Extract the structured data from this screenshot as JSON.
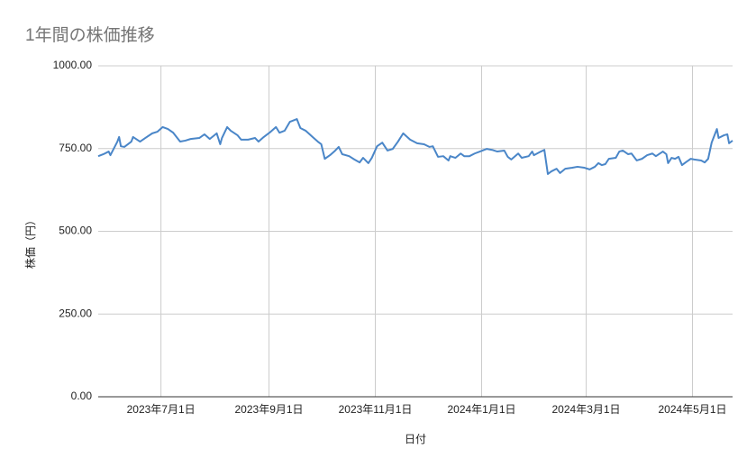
{
  "chart_data": {
    "type": "line",
    "title": "1年間の株価推移",
    "x_label": "日付",
    "y_label": "株価（円）",
    "grid": true,
    "xlim": [
      "2023-05-26",
      "2024-05-24"
    ],
    "xticks": [
      {
        "value": "2023-07-01",
        "label": "2023年7月1日"
      },
      {
        "value": "2023-09-01",
        "label": "2023年9月1日"
      },
      {
        "value": "2023-11-01",
        "label": "2023年11月1日"
      },
      {
        "value": "2024-01-01",
        "label": "2024年1月1日"
      },
      {
        "value": "2024-03-01",
        "label": "2024年3月1日"
      },
      {
        "value": "2024-05-01",
        "label": "2024年5月1日"
      }
    ],
    "ylim": [
      0,
      1000
    ],
    "yticks": [
      {
        "value": 0,
        "label": "0.00"
      },
      {
        "value": 250,
        "label": "250.00"
      },
      {
        "value": 500,
        "label": "500.00"
      },
      {
        "value": 750,
        "label": "750.00"
      },
      {
        "value": 1000,
        "label": "1000.00"
      }
    ],
    "x": [
      "2023-05-26",
      "2023-05-29",
      "2023-06-01",
      "2023-06-02",
      "2023-06-06",
      "2023-06-07",
      "2023-06-08",
      "2023-06-10",
      "2023-06-14",
      "2023-06-15",
      "2023-06-19",
      "2023-06-22",
      "2023-06-26",
      "2023-06-29",
      "2023-07-02",
      "2023-07-05",
      "2023-07-08",
      "2023-07-12",
      "2023-07-15",
      "2023-07-18",
      "2023-07-23",
      "2023-07-26",
      "2023-07-29",
      "2023-08-02",
      "2023-08-04",
      "2023-08-05",
      "2023-08-08",
      "2023-08-10",
      "2023-08-14",
      "2023-08-16",
      "2023-08-20",
      "2023-08-24",
      "2023-08-26",
      "2023-08-29",
      "2023-09-02",
      "2023-09-05",
      "2023-09-07",
      "2023-09-10",
      "2023-09-13",
      "2023-09-17",
      "2023-09-19",
      "2023-09-22",
      "2023-09-26",
      "2023-09-29",
      "2023-10-01",
      "2023-10-03",
      "2023-10-06",
      "2023-10-09",
      "2023-10-11",
      "2023-10-13",
      "2023-10-17",
      "2023-10-20",
      "2023-10-23",
      "2023-10-25",
      "2023-10-28",
      "2023-10-30",
      "2023-11-02",
      "2023-11-05",
      "2023-11-08",
      "2023-11-11",
      "2023-11-14",
      "2023-11-17",
      "2023-11-21",
      "2023-11-25",
      "2023-11-29",
      "2023-12-02",
      "2023-12-04",
      "2023-12-07",
      "2023-12-10",
      "2023-12-13",
      "2023-12-14",
      "2023-12-17",
      "2023-12-20",
      "2023-12-22",
      "2023-12-25",
      "2023-12-28",
      "2023-12-31",
      "2024-01-04",
      "2024-01-07",
      "2024-01-10",
      "2024-01-14",
      "2024-01-16",
      "2024-01-18",
      "2024-01-22",
      "2024-01-24",
      "2024-01-28",
      "2024-01-30",
      "2024-01-31",
      "2024-02-04",
      "2024-02-06",
      "2024-02-08",
      "2024-02-10",
      "2024-02-13",
      "2024-02-15",
      "2024-02-18",
      "2024-02-22",
      "2024-02-25",
      "2024-02-29",
      "2024-03-03",
      "2024-03-06",
      "2024-03-08",
      "2024-03-10",
      "2024-03-12",
      "2024-03-14",
      "2024-03-18",
      "2024-03-20",
      "2024-03-22",
      "2024-03-25",
      "2024-03-27",
      "2024-03-30",
      "2024-04-02",
      "2024-04-05",
      "2024-04-08",
      "2024-04-10",
      "2024-04-14",
      "2024-04-16",
      "2024-04-17",
      "2024-04-19",
      "2024-04-21",
      "2024-04-23",
      "2024-04-25",
      "2024-04-27",
      "2024-04-30",
      "2024-05-02",
      "2024-05-06",
      "2024-05-08",
      "2024-05-10",
      "2024-05-12",
      "2024-05-15",
      "2024-05-16",
      "2024-05-19",
      "2024-05-21",
      "2024-05-22",
      "2024-05-24"
    ],
    "series": [
      {
        "name": "株価",
        "color": "#4a86c8",
        "values": [
          727,
          733,
          741,
          730,
          771,
          785,
          757,
          755,
          771,
          785,
          771,
          782,
          796,
          801,
          815,
          809,
          798,
          771,
          774,
          779,
          782,
          793,
          779,
          796,
          763,
          782,
          815,
          804,
          790,
          777,
          777,
          782,
          771,
          785,
          801,
          815,
          798,
          804,
          831,
          839,
          812,
          804,
          785,
          771,
          763,
          719,
          730,
          744,
          755,
          733,
          727,
          717,
          708,
          722,
          706,
          722,
          757,
          768,
          744,
          749,
          771,
          796,
          777,
          766,
          763,
          755,
          757,
          725,
          727,
          714,
          727,
          722,
          735,
          727,
          727,
          735,
          741,
          749,
          746,
          741,
          744,
          725,
          717,
          735,
          722,
          727,
          741,
          730,
          741,
          746,
          673,
          681,
          689,
          676,
          689,
          692,
          695,
          692,
          687,
          695,
          706,
          700,
          703,
          719,
          722,
          741,
          744,
          733,
          735,
          714,
          719,
          730,
          735,
          727,
          741,
          733,
          706,
          722,
          719,
          725,
          700,
          708,
          719,
          717,
          714,
          708,
          719,
          768,
          809,
          782,
          790,
          793,
          766,
          774
        ]
      }
    ]
  }
}
